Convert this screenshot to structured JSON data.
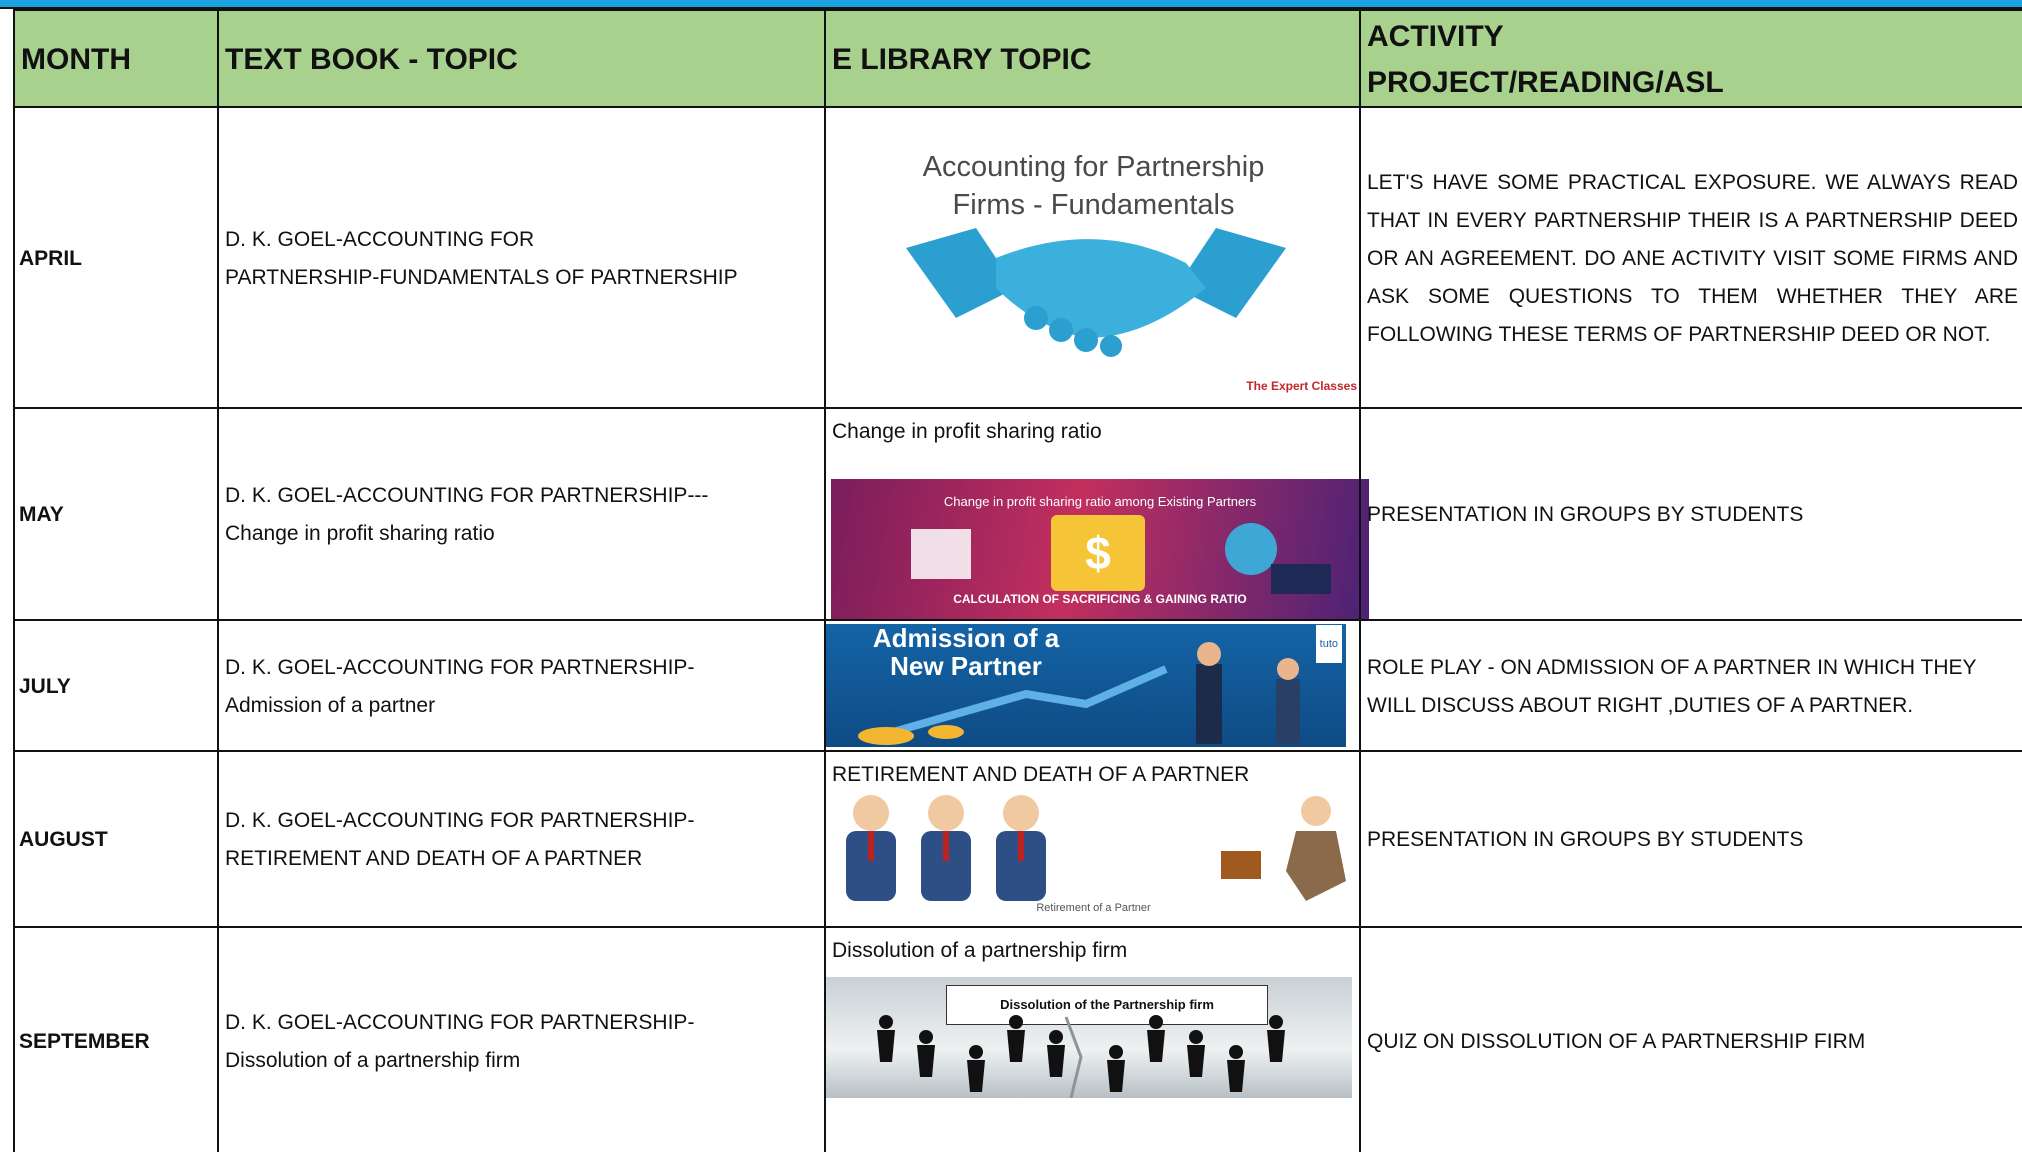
{
  "table": {
    "headers": [
      "MONTH",
      "TEXT BOOK - TOPIC",
      "E LIBRARY TOPIC",
      "ACTIVITY\nPROJECT/READING/ASL"
    ],
    "rows": [
      {
        "month": "APRIL",
        "textbook": "D. K. GOEL-ACCOUNTING FOR\nPARTNERSHIP-FUNDAMENTALS OF PARTNERSHIP",
        "image_text": [
          "Accounting for Partnership\nFirms - Fundamentals",
          "The Expert Classes"
        ],
        "activity": "LET'S HAVE SOME PRACTICAL EXPOSURE. WE ALWAYS READ THAT  IN EVERY PARTNERSHIP THEIR IS A PARTNERSHIP DEED OR AN AGREEMENT. DO ANE ACTIVITY VISIT SOME FIRMS AND ASK SOME QUESTIONS TO THEM WHETHER THEY ARE FOLLOWING THESE TERMS OF PARTNERSHIP DEED OR NOT."
      },
      {
        "month": "MAY",
        "textbook": "D. K. GOEL-ACCOUNTING FOR PARTNERSHIP---\nChange in profit sharing ratio",
        "caption": "Change in profit sharing ratio",
        "image_text": [
          "Change in profit sharing ratio among Existing Partners",
          "$",
          "CALCULATION OF SACRIFICING & GAINING RATIO"
        ],
        "activity": "PRESENTATION IN GROUPS BY STUDENTS"
      },
      {
        "month": "JULY",
        "textbook": " D. K. GOEL-ACCOUNTING FOR PARTNERSHIP-\nAdmission of a partner",
        "image_text": [
          "Admission of a\nNew Partner",
          "tuto"
        ],
        "activity": "ROLE PLAY - ON ADMISSION OF A PARTNER IN WHICH THEY WILL DISCUSS ABOUT RIGHT ,DUTIES OF A PARTNER."
      },
      {
        "month": "AUGUST",
        "textbook": "D. K. GOEL-ACCOUNTING FOR PARTNERSHIP-\nRETIREMENT AND DEATH OF A PARTNER",
        "caption": "RETIREMENT AND DEATH OF A PARTNER",
        "image_text": [
          "Retirement of a Partner"
        ],
        "activity": "PRESENTATION IN GROUPS BY STUDENTS"
      },
      {
        "month": "SEPTEMBER",
        "textbook": "D. K. GOEL-ACCOUNTING FOR PARTNERSHIP-\nDissolution of a partnership firm",
        "caption": "Dissolution of a partnership firm",
        "image_text": [
          "Dissolution of the Partnership firm"
        ],
        "activity": "QUIZ ON DISSOLUTION OF A PARTNERSHIP FIRM"
      }
    ]
  }
}
